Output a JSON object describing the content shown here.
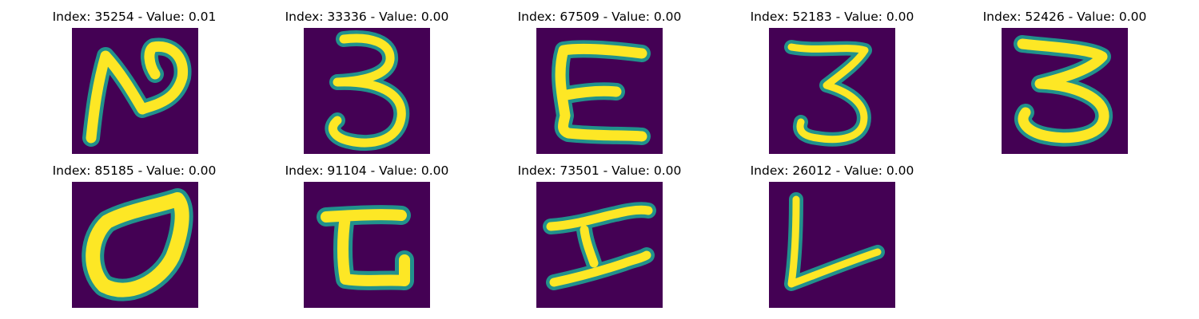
{
  "colors": {
    "background": "#440154",
    "stroke_edge": "#21918c",
    "stroke_core": "#fde725"
  },
  "panels": [
    {
      "title": "Index: 35254 - Value: 0.01",
      "glyph": "handwritten-N"
    },
    {
      "title": "Index: 33336 - Value: 0.00",
      "glyph": "handwritten-3"
    },
    {
      "title": "Index: 67509 - Value: 0.00",
      "glyph": "handwritten-E"
    },
    {
      "title": "Index: 52183 - Value: 0.00",
      "glyph": "handwritten-3"
    },
    {
      "title": "Index: 52426 - Value: 0.00",
      "glyph": "handwritten-3"
    },
    {
      "title": "Index: 85185 - Value: 0.00",
      "glyph": "handwritten-0"
    },
    {
      "title": "Index: 91104 - Value: 0.00",
      "glyph": "handwritten-E"
    },
    {
      "title": "Index: 73501 - Value: 0.00",
      "glyph": "handwritten-H"
    },
    {
      "title": "Index: 26012 - Value: 0.00",
      "glyph": "handwritten-L"
    }
  ]
}
